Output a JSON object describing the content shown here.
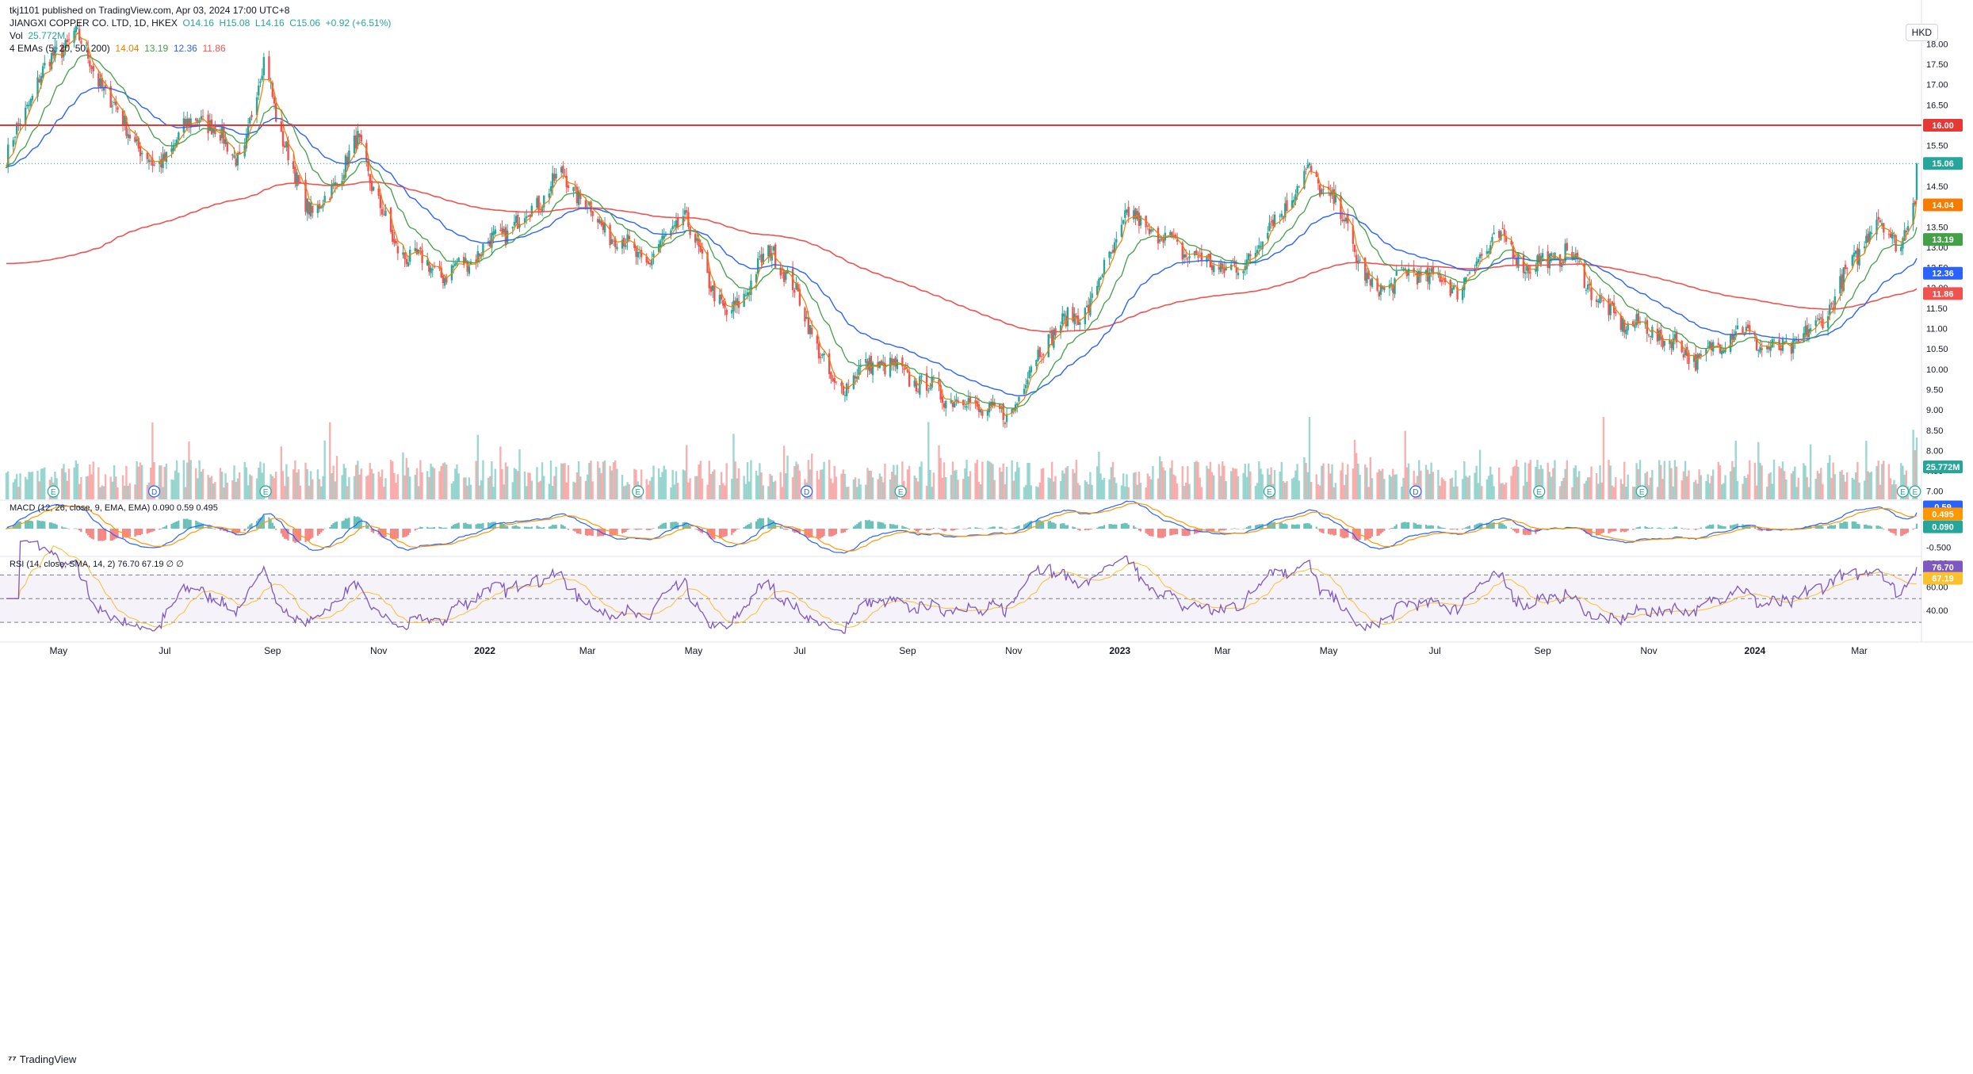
{
  "header": {
    "published_line": "tkj1101 published on TradingView.com, Apr 03, 2024 17:00 UTC+8",
    "symbol_line": {
      "name": "JIANGXI COPPER CO. LTD, 1D, HKEX",
      "o": "O14.16",
      "h": "H15.08",
      "l": "L14.16",
      "c": "C15.06",
      "change": "+0.92 (+6.51%)"
    },
    "vol_line": {
      "label": "Vol",
      "value": "25.772M"
    },
    "ema_line": {
      "label": "4 EMAs (5, 20, 50, 200)",
      "v1": "14.04",
      "v2": "13.19",
      "v3": "12.36",
      "v4": "11.86"
    }
  },
  "currency": "HKD",
  "branding": "TradingView",
  "colors": {
    "up": "#26a69a",
    "down": "#ef5350",
    "ema5": "#f57c00",
    "ema20": "#43a047",
    "ema50": "#2962ff",
    "ema200": "#ef5350",
    "hline": "#e53935",
    "macd": "#2962ff",
    "signal": "#ff9800",
    "rsi": "#7e57c2",
    "rsi_ma": "#fbc02d"
  },
  "chart_data": {
    "type": "candlestick",
    "title": "JIANGXI COPPER CO. LTD, 1D, HKEX",
    "x_range": [
      "2021-04-01",
      "2024-04-03"
    ],
    "x_tick_labels": [
      "May",
      "Jul",
      "Sep",
      "Nov",
      "2022",
      "Mar",
      "May",
      "Jul",
      "Sep",
      "Nov",
      "2023",
      "Mar",
      "May",
      "Jul",
      "Sep",
      "Nov",
      "2024",
      "Mar"
    ],
    "ylim": [
      6.8,
      18.3
    ],
    "y_ticks": [
      "18.00",
      "17.50",
      "17.00",
      "16.50",
      "16.00",
      "15.50",
      "15.00",
      "14.50",
      "14.00",
      "13.50",
      "13.00",
      "12.50",
      "12.00",
      "11.50",
      "11.00",
      "10.50",
      "10.00",
      "9.50",
      "9.00",
      "8.50",
      "8.00",
      "7.50",
      "7.00"
    ],
    "close_anchors": [
      [
        "2021-04-01",
        15.2
      ],
      [
        "2021-04-20",
        17.2
      ],
      [
        "2021-05-10",
        18.3
      ],
      [
        "2021-06-01",
        16.5
      ],
      [
        "2021-06-25",
        14.9
      ],
      [
        "2021-07-20",
        16.3
      ],
      [
        "2021-08-15",
        15.1
      ],
      [
        "2021-08-28",
        17.9
      ],
      [
        "2021-09-05",
        15.7
      ],
      [
        "2021-09-25",
        13.7
      ],
      [
        "2021-10-20",
        15.6
      ],
      [
        "2021-11-10",
        13.0
      ],
      [
        "2021-12-10",
        12.3
      ],
      [
        "2022-01-20",
        13.6
      ],
      [
        "2022-02-15",
        14.8
      ],
      [
        "2022-03-10",
        13.5
      ],
      [
        "2022-04-05",
        12.6
      ],
      [
        "2022-04-25",
        13.8
      ],
      [
        "2022-05-20",
        11.2
      ],
      [
        "2022-06-15",
        13.0
      ],
      [
        "2022-07-05",
        11.3
      ],
      [
        "2022-07-20",
        9.5
      ],
      [
        "2022-08-15",
        10.2
      ],
      [
        "2022-09-20",
        9.4
      ],
      [
        "2022-10-28",
        8.8
      ],
      [
        "2022-11-20",
        10.8
      ],
      [
        "2022-12-15",
        11.6
      ],
      [
        "2023-01-05",
        13.8
      ],
      [
        "2023-02-15",
        12.7
      ],
      [
        "2023-03-10",
        12.4
      ],
      [
        "2023-04-20",
        14.9
      ],
      [
        "2023-05-10",
        13.7
      ],
      [
        "2023-05-25",
        11.9
      ],
      [
        "2023-06-20",
        12.4
      ],
      [
        "2023-07-15",
        12.0
      ],
      [
        "2023-08-05",
        13.3
      ],
      [
        "2023-08-25",
        12.5
      ],
      [
        "2023-09-15",
        12.9
      ],
      [
        "2023-10-10",
        11.3
      ],
      [
        "2023-11-05",
        10.9
      ],
      [
        "2023-12-01",
        10.2
      ],
      [
        "2023-12-20",
        11.0
      ],
      [
        "2024-01-15",
        10.4
      ],
      [
        "2024-02-05",
        11.0
      ],
      [
        "2024-02-20",
        12.1
      ],
      [
        "2024-03-10",
        13.7
      ],
      [
        "2024-03-25",
        13.1
      ],
      [
        "2024-04-02",
        14.14
      ],
      [
        "2024-04-03",
        15.06
      ]
    ],
    "last": {
      "open": 14.16,
      "high": 15.08,
      "low": 14.16,
      "close": 15.06
    },
    "horizontal_line": 16.0,
    "series": [
      {
        "name": "EMA 5",
        "last": 14.04
      },
      {
        "name": "EMA 20",
        "last": 13.19
      },
      {
        "name": "EMA 50",
        "last": 12.36
      },
      {
        "name": "EMA 200",
        "last": 11.86
      }
    ],
    "volume": {
      "last": "25.772M"
    },
    "event_markers": [
      [
        "2021-04-28",
        "E"
      ],
      [
        "2021-06-25",
        "D"
      ],
      [
        "2021-08-28",
        "E"
      ],
      [
        "2022-03-30",
        "E"
      ],
      [
        "2022-07-05",
        "D"
      ],
      [
        "2022-08-28",
        "E"
      ],
      [
        "2023-03-28",
        "E"
      ],
      [
        "2023-06-20",
        "D"
      ],
      [
        "2023-08-30",
        "E"
      ],
      [
        "2023-10-28",
        "E"
      ],
      [
        "2024-03-26",
        "E"
      ],
      [
        "2024-04-02",
        "E"
      ]
    ],
    "macd": {
      "label": "MACD (12, 26, close, 9, EMA, EMA)",
      "histogram": "0.090",
      "macd": "0.59",
      "signal": "0.495",
      "ticks": [
        "-0.500"
      ]
    },
    "rsi": {
      "label": "RSI (14, close, SMA, 14, 2)",
      "value": "76.70",
      "ma": "67.19",
      "extra": "∅ ∅",
      "ticks": [
        "80.00",
        "60.00",
        "40.00"
      ],
      "band": [
        30,
        70
      ]
    }
  }
}
